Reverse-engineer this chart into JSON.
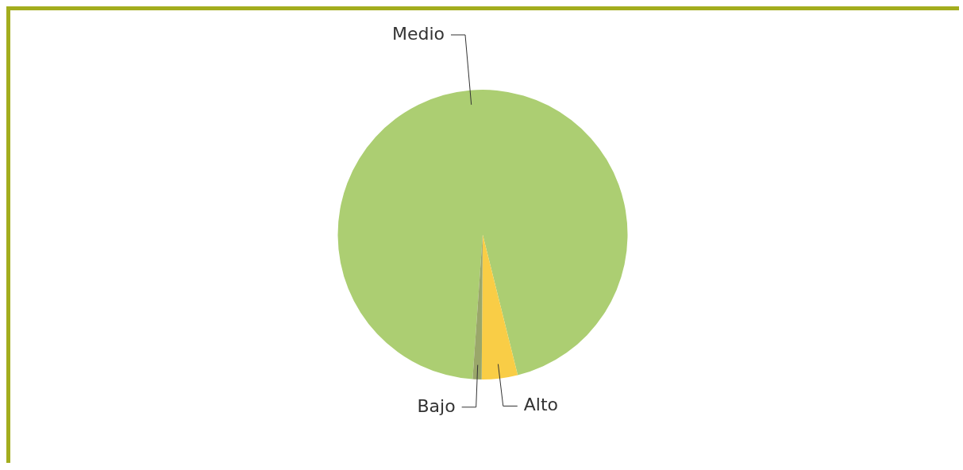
{
  "chart_data": {
    "type": "pie",
    "categories": [
      "Medio",
      "Alto",
      "Bajo"
    ],
    "values": [
      95,
      4,
      1
    ],
    "colors": [
      "#acce72",
      "#f9cd46",
      "#9aa76a"
    ],
    "legend": false
  }
}
